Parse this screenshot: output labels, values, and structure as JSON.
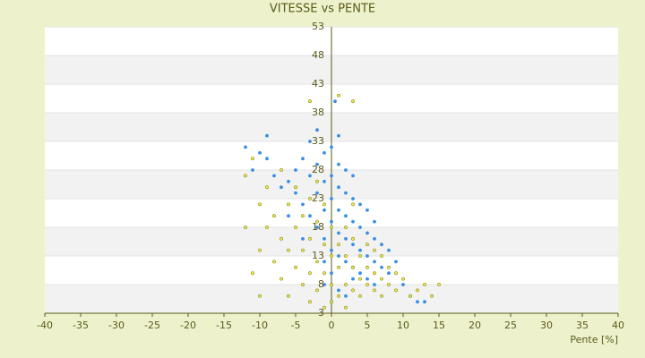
{
  "chart_data": {
    "type": "scatter",
    "title": "VITESSE vs PENTE",
    "x_label": "Pente [%]",
    "xlim": [
      -40,
      40
    ],
    "xticks": [
      -40,
      -35,
      -30,
      -25,
      -20,
      -15,
      -10,
      -5,
      0,
      5,
      10,
      15,
      20,
      25,
      30,
      35,
      40
    ],
    "ylim": [
      3,
      53
    ],
    "yticks": [
      3,
      8,
      13,
      18,
      23,
      28,
      33,
      38,
      43,
      48,
      53
    ],
    "grid": true,
    "series": [
      {
        "color": "#3a8ee6",
        "x": [
          -10,
          -9,
          -8,
          -7,
          -6,
          -5,
          -5,
          -4,
          -4,
          -3,
          -3,
          -3,
          -2,
          -2,
          -2,
          -2,
          -1,
          -1,
          -1,
          -1,
          -1,
          0,
          0,
          0,
          0,
          0,
          0,
          0.5,
          1,
          1,
          1,
          1,
          1,
          1,
          2,
          2,
          2,
          2,
          2,
          3,
          3,
          3,
          3,
          3,
          4,
          4,
          4,
          4,
          5,
          5,
          5,
          5,
          6,
          6,
          6,
          7,
          7,
          8,
          8,
          9,
          10,
          11,
          12,
          13,
          -12,
          -11,
          -6,
          -4,
          1,
          2,
          0,
          -1,
          -9,
          3,
          6
        ],
        "values": [
          31,
          30,
          27,
          25,
          26,
          24,
          28,
          22,
          30,
          20,
          27,
          33,
          18,
          24,
          29,
          35,
          16,
          21,
          26,
          31,
          12,
          14,
          19,
          23,
          27,
          32,
          10,
          40,
          13,
          17,
          21,
          25,
          29,
          34,
          12,
          16,
          20,
          24,
          28,
          11,
          15,
          19,
          23,
          27,
          10,
          14,
          18,
          22,
          9,
          13,
          17,
          21,
          8,
          12,
          16,
          11,
          15,
          10,
          14,
          12,
          8,
          6,
          5,
          5,
          32,
          28,
          20,
          16,
          7,
          6,
          5,
          8,
          34,
          9,
          19
        ]
      },
      {
        "color": "#8a8a00",
        "x": [
          -12,
          -11,
          -10,
          -10,
          -9,
          -9,
          -8,
          -8,
          -7,
          -7,
          -7,
          -6,
          -6,
          -6,
          -5,
          -5,
          -5,
          -4,
          -4,
          -4,
          -3,
          -3,
          -3,
          -3,
          -2,
          -2,
          -2,
          -2,
          -1,
          -1,
          -1,
          -1,
          0,
          0,
          0,
          0,
          1,
          1,
          1,
          1,
          2,
          2,
          2,
          2,
          3,
          3,
          3,
          3,
          4,
          4,
          4,
          5,
          5,
          5,
          6,
          6,
          6,
          7,
          7,
          7,
          8,
          8,
          9,
          9,
          10,
          11,
          12,
          13,
          14,
          15,
          -12,
          -11,
          -3,
          3,
          -10
        ],
        "values": [
          27,
          30,
          22,
          14,
          25,
          18,
          20,
          12,
          16,
          28,
          9,
          22,
          14,
          6,
          18,
          25,
          11,
          20,
          14,
          8,
          16,
          23,
          10,
          5,
          12,
          19,
          26,
          7,
          10,
          15,
          22,
          4,
          8,
          13,
          18,
          5,
          6,
          11,
          15,
          41,
          8,
          13,
          18,
          4,
          7,
          11,
          16,
          22,
          9,
          13,
          6,
          8,
          11,
          15,
          7,
          10,
          14,
          6,
          9,
          13,
          8,
          11,
          7,
          10,
          9,
          6,
          7,
          8,
          6,
          8,
          18,
          10,
          40,
          40,
          6
        ]
      }
    ]
  }
}
